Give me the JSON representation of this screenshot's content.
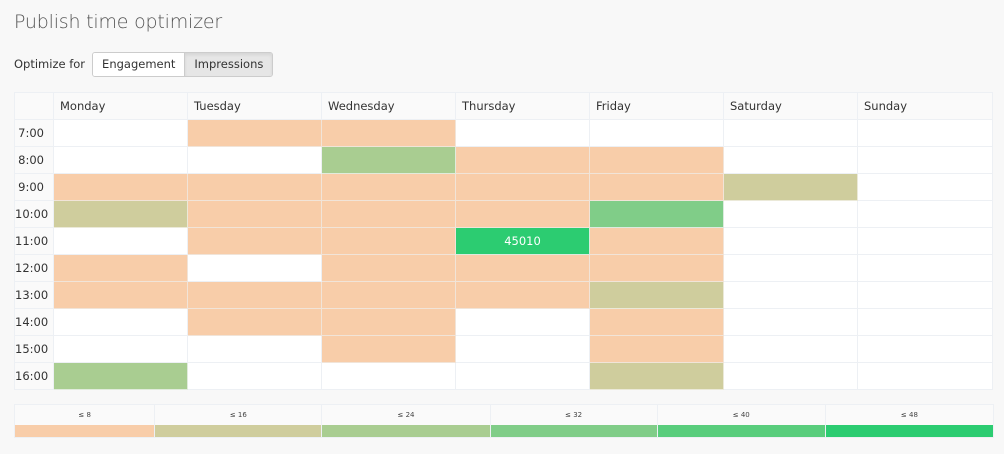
{
  "page": {
    "title": "Publish time optimizer"
  },
  "optimize": {
    "label": "Optimize for",
    "options": [
      {
        "label": "Engagement",
        "active": false
      },
      {
        "label": "Impressions",
        "active": true
      }
    ]
  },
  "colors": {
    "empty": "#ffffff",
    "level1": "#f8cda9",
    "level2": "#cfcd9d",
    "level3": "#a9cd91",
    "level4": "#80cd88",
    "level5": "#59cd7c",
    "level6": "#2ccc71"
  },
  "grid": {
    "days": [
      "Monday",
      "Tuesday",
      "Wednesday",
      "Thursday",
      "Friday",
      "Saturday",
      "Sunday"
    ],
    "rows": [
      {
        "time": "7:00",
        "levels": [
          0,
          1,
          1,
          0,
          0,
          0,
          0
        ],
        "values": [
          "",
          "",
          "",
          "",
          "",
          "",
          ""
        ]
      },
      {
        "time": "8:00",
        "levels": [
          0,
          0,
          3,
          1,
          1,
          0,
          0
        ],
        "values": [
          "",
          "",
          "",
          "",
          "",
          "",
          ""
        ]
      },
      {
        "time": "9:00",
        "levels": [
          1,
          1,
          1,
          1,
          1,
          2,
          0
        ],
        "values": [
          "",
          "",
          "",
          "",
          "",
          "",
          ""
        ]
      },
      {
        "time": "10:00",
        "levels": [
          2,
          1,
          1,
          1,
          4,
          0,
          0
        ],
        "values": [
          "",
          "",
          "",
          "",
          "",
          "",
          ""
        ]
      },
      {
        "time": "11:00",
        "levels": [
          0,
          1,
          1,
          6,
          1,
          0,
          0
        ],
        "values": [
          "",
          "",
          "",
          "45010",
          "",
          "",
          ""
        ]
      },
      {
        "time": "12:00",
        "levels": [
          1,
          0,
          1,
          1,
          1,
          0,
          0
        ],
        "values": [
          "",
          "",
          "",
          "",
          "",
          "",
          ""
        ]
      },
      {
        "time": "13:00",
        "levels": [
          1,
          1,
          1,
          1,
          2,
          0,
          0
        ],
        "values": [
          "",
          "",
          "",
          "",
          "",
          "",
          ""
        ]
      },
      {
        "time": "14:00",
        "levels": [
          0,
          1,
          1,
          0,
          1,
          0,
          0
        ],
        "values": [
          "",
          "",
          "",
          "",
          "",
          "",
          ""
        ]
      },
      {
        "time": "15:00",
        "levels": [
          0,
          0,
          1,
          0,
          1,
          0,
          0
        ],
        "values": [
          "",
          "",
          "",
          "",
          "",
          "",
          ""
        ]
      },
      {
        "time": "16:00",
        "levels": [
          3,
          0,
          0,
          0,
          2,
          0,
          0
        ],
        "values": [
          "",
          "",
          "",
          "",
          "",
          "",
          ""
        ]
      }
    ]
  },
  "legend": {
    "items": [
      {
        "label": "≤ 8",
        "level": 1,
        "width": 140
      },
      {
        "label": "≤ 16",
        "level": 2,
        "width": 167
      },
      {
        "label": "≤ 24",
        "level": 3,
        "width": 168
      },
      {
        "label": "≤ 32",
        "level": 4,
        "width": 167
      },
      {
        "label": "≤ 40",
        "level": 5,
        "width": 168
      },
      {
        "label": "≤ 48",
        "level": 6,
        "width": 168
      }
    ]
  }
}
